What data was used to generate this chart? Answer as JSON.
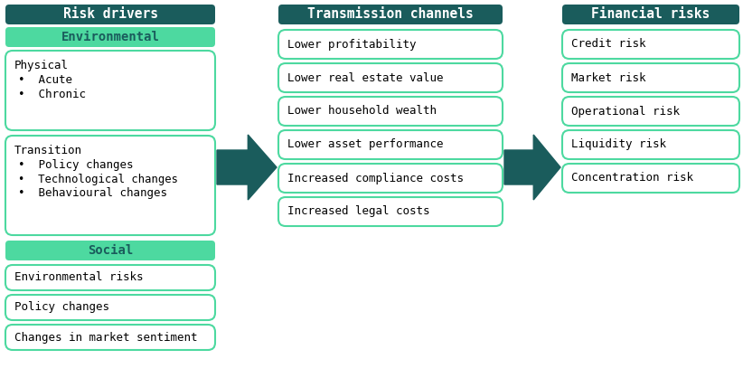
{
  "bg_color": "#ffffff",
  "dark_teal": "#1a5c5c",
  "light_green": "#4dd9a0",
  "mint_border": "#4dd9a0",
  "col1_header": "Risk drivers",
  "col2_header": "Transmission channels",
  "col3_header": "Financial risks",
  "env_header": "Environmental",
  "social_header": "Social",
  "social_boxes": [
    "Environmental risks",
    "Policy changes",
    "Changes in market sentiment"
  ],
  "transmission_boxes": [
    "Lower profitability",
    "Lower real estate value",
    "Lower household wealth",
    "Lower asset performance",
    "Increased compliance costs",
    "Increased legal costs"
  ],
  "financial_boxes": [
    "Credit risk",
    "Market risk",
    "Operational risk",
    "Liquidity risk",
    "Concentration risk"
  ],
  "figw": 8.22,
  "figh": 4.18,
  "dpi": 100
}
